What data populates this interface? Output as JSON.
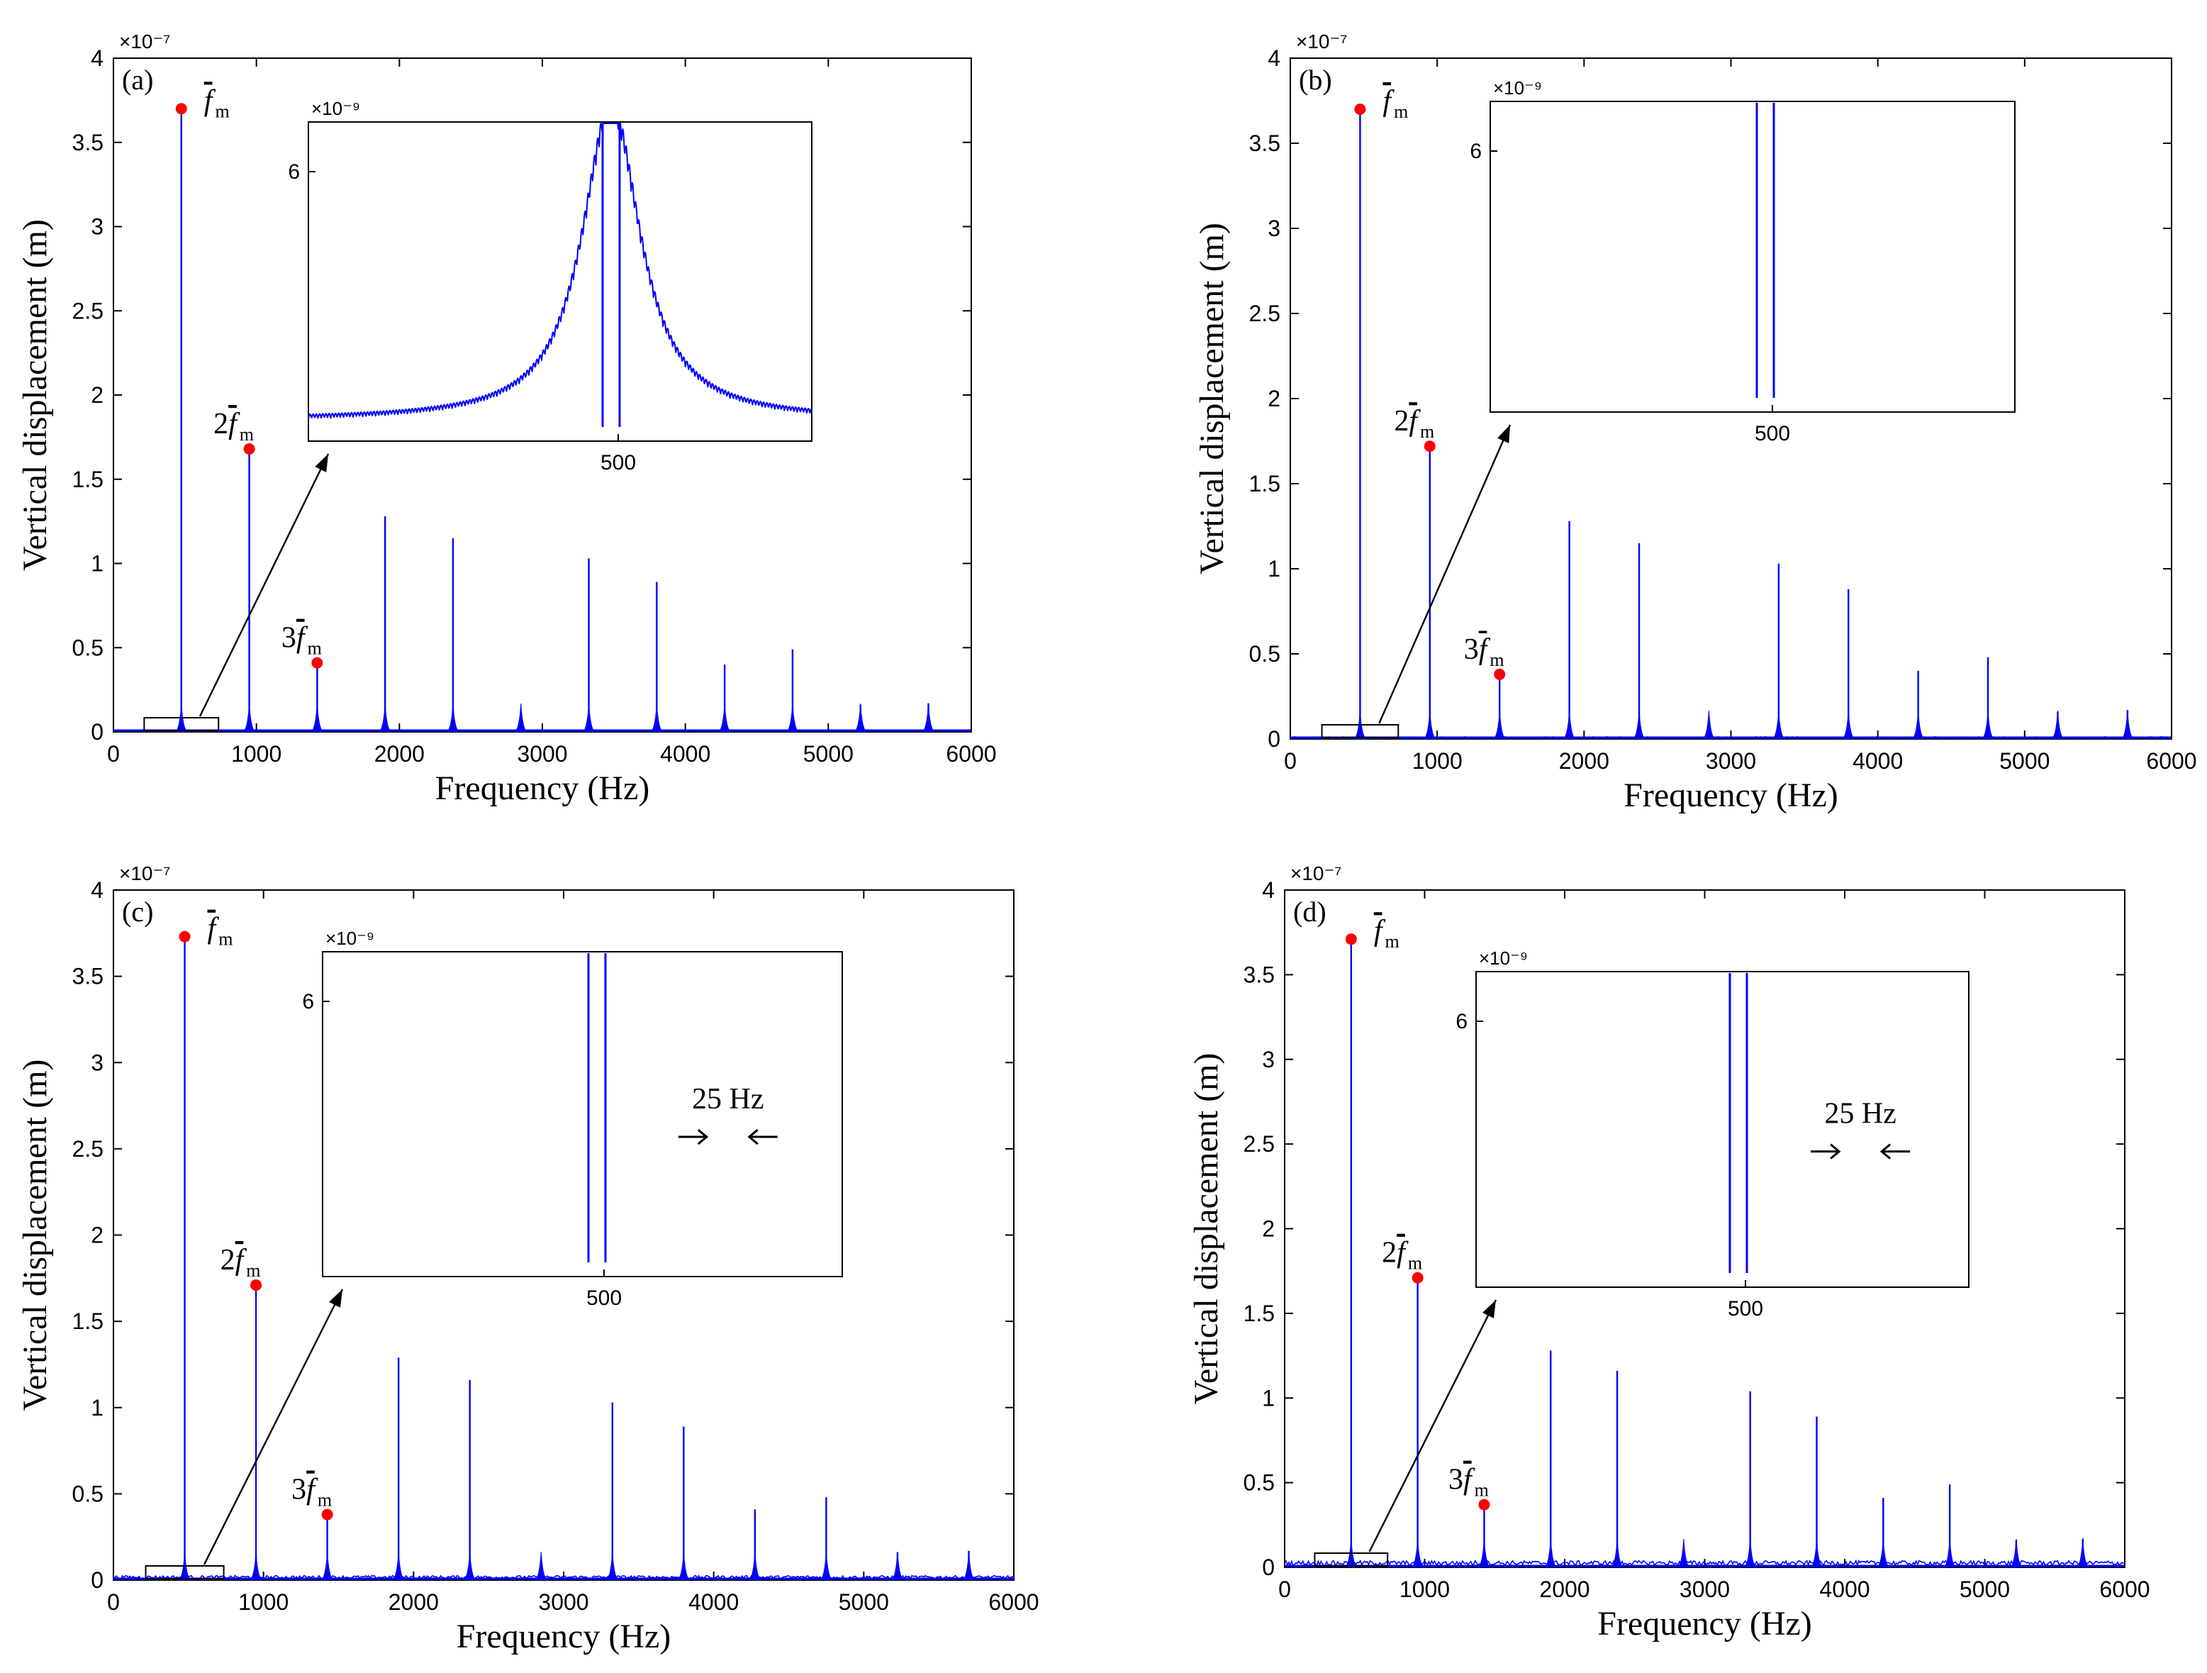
{
  "chart_data": [
    {
      "type": "line",
      "panel_label": "(a)",
      "xlabel": "Frequency (Hz)",
      "ylabel": "Vertical displacement (m)",
      "y_exponent": "×10⁻⁷",
      "xlim": [
        0,
        6000
      ],
      "ylim": [
        0,
        4
      ],
      "xticks": [
        "0",
        "1000",
        "2000",
        "3000",
        "4000",
        "5000",
        "6000"
      ],
      "yticks": [
        "0",
        "0.5",
        "1",
        "1.5",
        "2",
        "2.5",
        "3",
        "3.5",
        "4"
      ],
      "floor": 0.0,
      "peaks": [
        {
          "x": 475,
          "y": 3.7
        },
        {
          "x": 950,
          "y": 1.68
        },
        {
          "x": 1425,
          "y": 0.41
        },
        {
          "x": 1900,
          "y": 1.28
        },
        {
          "x": 2375,
          "y": 1.15
        },
        {
          "x": 2850,
          "y": 0.07
        },
        {
          "x": 3325,
          "y": 1.03
        },
        {
          "x": 3800,
          "y": 0.89
        },
        {
          "x": 4275,
          "y": 0.4
        },
        {
          "x": 4750,
          "y": 0.49
        },
        {
          "x": 5225,
          "y": 0.16
        },
        {
          "x": 5700,
          "y": 0.17
        }
      ],
      "markers": [
        {
          "x": 475,
          "y": 3.7,
          "label": "f",
          "prefix": ""
        },
        {
          "x": 950,
          "y": 1.68,
          "label": "f",
          "prefix": "2"
        },
        {
          "x": 1425,
          "y": 0.41,
          "label": "f",
          "prefix": "3"
        }
      ],
      "marker_subscript": "m",
      "inset": {
        "y_exponent": "×10⁻⁹",
        "xtick": "500",
        "ytick": "6",
        "style": "smooth",
        "spacing_label": ""
      }
    },
    {
      "type": "line",
      "panel_label": "(b)",
      "xlabel": "Frequency (Hz)",
      "ylabel": "Vertical displacement (m)",
      "y_exponent": "×10⁻⁷",
      "xlim": [
        0,
        6000
      ],
      "ylim": [
        0,
        4
      ],
      "xticks": [
        "0",
        "1000",
        "2000",
        "3000",
        "4000",
        "5000",
        "6000"
      ],
      "yticks": [
        "0",
        "0.5",
        "1",
        "1.5",
        "2",
        "2.5",
        "3",
        "3.5",
        "4"
      ],
      "floor": 0.01,
      "peaks": [
        {
          "x": 475,
          "y": 3.7
        },
        {
          "x": 950,
          "y": 1.72
        },
        {
          "x": 1425,
          "y": 0.38
        },
        {
          "x": 1900,
          "y": 1.28
        },
        {
          "x": 2375,
          "y": 1.15
        },
        {
          "x": 2850,
          "y": 0.08
        },
        {
          "x": 3325,
          "y": 1.03
        },
        {
          "x": 3800,
          "y": 0.88
        },
        {
          "x": 4275,
          "y": 0.4
        },
        {
          "x": 4750,
          "y": 0.48
        },
        {
          "x": 5225,
          "y": 0.16
        },
        {
          "x": 5700,
          "y": 0.17
        }
      ],
      "markers": [
        {
          "x": 475,
          "y": 3.7,
          "label": "f",
          "prefix": ""
        },
        {
          "x": 950,
          "y": 1.72,
          "label": "f",
          "prefix": "2"
        },
        {
          "x": 1425,
          "y": 0.38,
          "label": "f",
          "prefix": "3"
        }
      ],
      "marker_subscript": "m",
      "inset": {
        "y_exponent": "×10⁻⁹",
        "xtick": "500",
        "ytick": "6",
        "style": "noisy",
        "spacing_label": ""
      }
    },
    {
      "type": "line",
      "panel_label": "(c)",
      "xlabel": "Frequency (Hz)",
      "ylabel": "Vertical displacement (m)",
      "y_exponent": "×10⁻⁷",
      "xlim": [
        0,
        6000
      ],
      "ylim": [
        0,
        4
      ],
      "xticks": [
        "0",
        "1000",
        "2000",
        "3000",
        "4000",
        "5000",
        "6000"
      ],
      "yticks": [
        "0",
        "0.5",
        "1",
        "1.5",
        "2",
        "2.5",
        "3",
        "3.5",
        "4"
      ],
      "floor": 0.02,
      "peaks": [
        {
          "x": 475,
          "y": 3.73
        },
        {
          "x": 950,
          "y": 1.71
        },
        {
          "x": 1425,
          "y": 0.38
        },
        {
          "x": 1900,
          "y": 1.29
        },
        {
          "x": 2375,
          "y": 1.16
        },
        {
          "x": 2850,
          "y": 0.08
        },
        {
          "x": 3325,
          "y": 1.03
        },
        {
          "x": 3800,
          "y": 0.89
        },
        {
          "x": 4275,
          "y": 0.41
        },
        {
          "x": 4750,
          "y": 0.48
        },
        {
          "x": 5225,
          "y": 0.16
        },
        {
          "x": 5700,
          "y": 0.17
        }
      ],
      "markers": [
        {
          "x": 475,
          "y": 3.73,
          "label": "f",
          "prefix": ""
        },
        {
          "x": 950,
          "y": 1.71,
          "label": "f",
          "prefix": "2"
        },
        {
          "x": 1425,
          "y": 0.38,
          "label": "f",
          "prefix": "3"
        }
      ],
      "marker_subscript": "m",
      "inset": {
        "y_exponent": "×10⁻⁹",
        "xtick": "500",
        "ytick": "6",
        "style": "spiky",
        "spacing_label": "25 Hz"
      }
    },
    {
      "type": "line",
      "panel_label": "(d)",
      "xlabel": "Frequency (Hz)",
      "ylabel": "Vertical displacement (m)",
      "y_exponent": "×10⁻⁷",
      "xlim": [
        0,
        6000
      ],
      "ylim": [
        0,
        4
      ],
      "xticks": [
        "0",
        "1000",
        "2000",
        "3000",
        "4000",
        "5000",
        "6000"
      ],
      "yticks": [
        "0",
        "0.5",
        "1",
        "1.5",
        "2",
        "2.5",
        "3",
        "3.5",
        "4"
      ],
      "floor": 0.03,
      "peaks": [
        {
          "x": 475,
          "y": 3.71
        },
        {
          "x": 950,
          "y": 1.71
        },
        {
          "x": 1425,
          "y": 0.37
        },
        {
          "x": 1900,
          "y": 1.28
        },
        {
          "x": 2375,
          "y": 1.16
        },
        {
          "x": 2850,
          "y": 0.09
        },
        {
          "x": 3325,
          "y": 1.04
        },
        {
          "x": 3800,
          "y": 0.89
        },
        {
          "x": 4275,
          "y": 0.41
        },
        {
          "x": 4750,
          "y": 0.49
        },
        {
          "x": 5225,
          "y": 0.16
        },
        {
          "x": 5700,
          "y": 0.17
        }
      ],
      "markers": [
        {
          "x": 475,
          "y": 3.71,
          "label": "f",
          "prefix": ""
        },
        {
          "x": 950,
          "y": 1.71,
          "label": "f",
          "prefix": "2"
        },
        {
          "x": 1425,
          "y": 0.37,
          "label": "f",
          "prefix": "3"
        }
      ],
      "marker_subscript": "m",
      "inset": {
        "y_exponent": "×10⁻⁹",
        "xtick": "500",
        "ytick": "6",
        "style": "spiky",
        "spacing_label": "25 Hz"
      }
    }
  ],
  "colors": {
    "line": "#0000ff",
    "marker": "#ff0000",
    "axis": "#000000"
  }
}
